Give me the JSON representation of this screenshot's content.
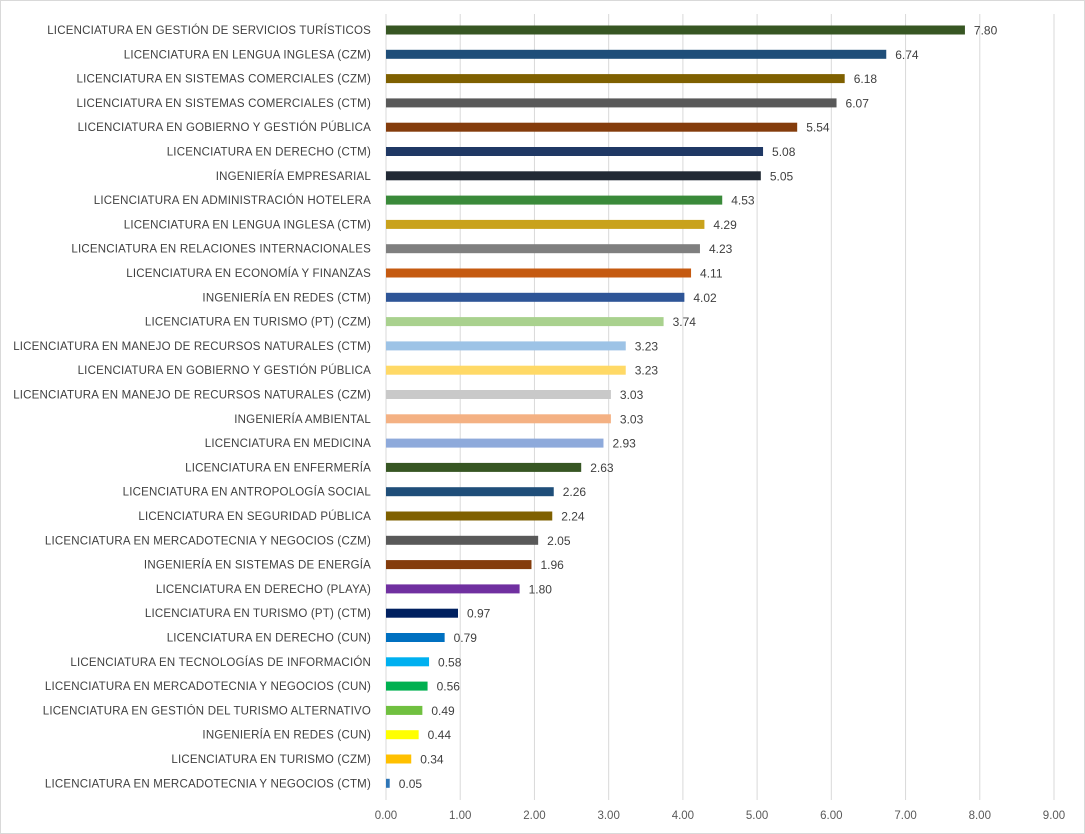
{
  "chart_data": {
    "type": "bar",
    "orientation": "horizontal",
    "title": "",
    "xlabel": "",
    "ylabel": "",
    "xlim": [
      0,
      9
    ],
    "grid": true,
    "legend": "none",
    "ticks": [
      "0.00",
      "1.00",
      "2.00",
      "3.00",
      "4.00",
      "5.00",
      "6.00",
      "7.00",
      "8.00",
      "9.00"
    ],
    "categories": [
      "LICENCIATURA EN GESTIÓN DE SERVICIOS TURÍSTICOS",
      "LICENCIATURA EN LENGUA INGLESA (CZM)",
      "LICENCIATURA EN SISTEMAS COMERCIALES (CZM)",
      "LICENCIATURA EN SISTEMAS COMERCIALES (CTM)",
      "LICENCIATURA EN GOBIERNO Y GESTIÓN PÚBLICA",
      "LICENCIATURA EN DERECHO (CTM)",
      "INGENIERÍA EMPRESARIAL",
      "LICENCIATURA EN ADMINISTRACIÓN HOTELERA",
      "LICENCIATURA EN LENGUA INGLESA (CTM)",
      "LICENCIATURA EN RELACIONES INTERNACIONALES",
      "LICENCIATURA EN ECONOMÍA Y FINANZAS",
      "INGENIERÍA EN REDES (CTM)",
      "LICENCIATURA EN TURISMO  (PT) (CZM)",
      "LICENCIATURA EN MANEJO DE RECURSOS NATURALES (CTM)",
      "LICENCIATURA EN GOBIERNO Y GESTIÓN PÚBLICA",
      "LICENCIATURA EN MANEJO DE RECURSOS NATURALES (CZM)",
      "INGENIERÍA AMBIENTAL",
      "LICENCIATURA EN MEDICINA",
      "LICENCIATURA EN ENFERMERÍA",
      "LICENCIATURA EN ANTROPOLOGÍA SOCIAL",
      "LICENCIATURA EN SEGURIDAD PÚBLICA",
      "LICENCIATURA EN MERCADOTECNIA Y NEGOCIOS (CZM)",
      "INGENIERÍA EN SISTEMAS DE ENERGÍA",
      "LICENCIATURA EN DERECHO (PLAYA)",
      "LICENCIATURA EN TURISMO  (PT) (CTM)",
      "LICENCIATURA EN DERECHO (CUN)",
      "LICENCIATURA EN TECNOLOGÍAS DE INFORMACIÓN",
      "LICENCIATURA EN MERCADOTECNIA Y NEGOCIOS (CUN)",
      "LICENCIATURA EN GESTIÓN DEL TURISMO ALTERNATIVO",
      "INGENIERÍA EN REDES (CUN)",
      "LICENCIATURA EN  TURISMO (CZM)",
      "LICENCIATURA EN MERCADOTECNIA Y NEGOCIOS (CTM)"
    ],
    "values": [
      7.8,
      6.74,
      6.18,
      6.07,
      5.54,
      5.08,
      5.05,
      4.53,
      4.29,
      4.23,
      4.11,
      4.02,
      3.74,
      3.23,
      3.23,
      3.03,
      3.03,
      2.93,
      2.63,
      2.26,
      2.24,
      2.05,
      1.96,
      1.8,
      0.97,
      0.79,
      0.58,
      0.56,
      0.49,
      0.44,
      0.34,
      0.05
    ],
    "value_labels": [
      "7.80",
      "6.74",
      "6.18",
      "6.07",
      "5.54",
      "5.08",
      "5.05",
      "4.53",
      "4.29",
      "4.23",
      "4.11",
      "4.02",
      "3.74",
      "3.23",
      "3.23",
      "3.03",
      "3.03",
      "2.93",
      "2.63",
      "2.26",
      "2.24",
      "2.05",
      "1.96",
      "1.80",
      "0.97",
      "0.79",
      "0.58",
      "0.56",
      "0.49",
      "0.44",
      "0.34",
      "0.05"
    ],
    "colors": [
      "#375623",
      "#1f4e79",
      "#7f6000",
      "#595959",
      "#843c0c",
      "#1f3864",
      "#222a35",
      "#3a8a3a",
      "#c9a21c",
      "#7f7f7f",
      "#c55a11",
      "#2e5597",
      "#a9d18e",
      "#9dc3e6",
      "#ffd966",
      "#c9c9c9",
      "#f4b183",
      "#8eaadb",
      "#375623",
      "#1f4e79",
      "#7f6000",
      "#595959",
      "#843c0c",
      "#7030a0",
      "#002060",
      "#0070c0",
      "#00b0f0",
      "#00b050",
      "#70c040",
      "#ffff00",
      "#ffc000",
      "#2e75b6"
    ]
  }
}
